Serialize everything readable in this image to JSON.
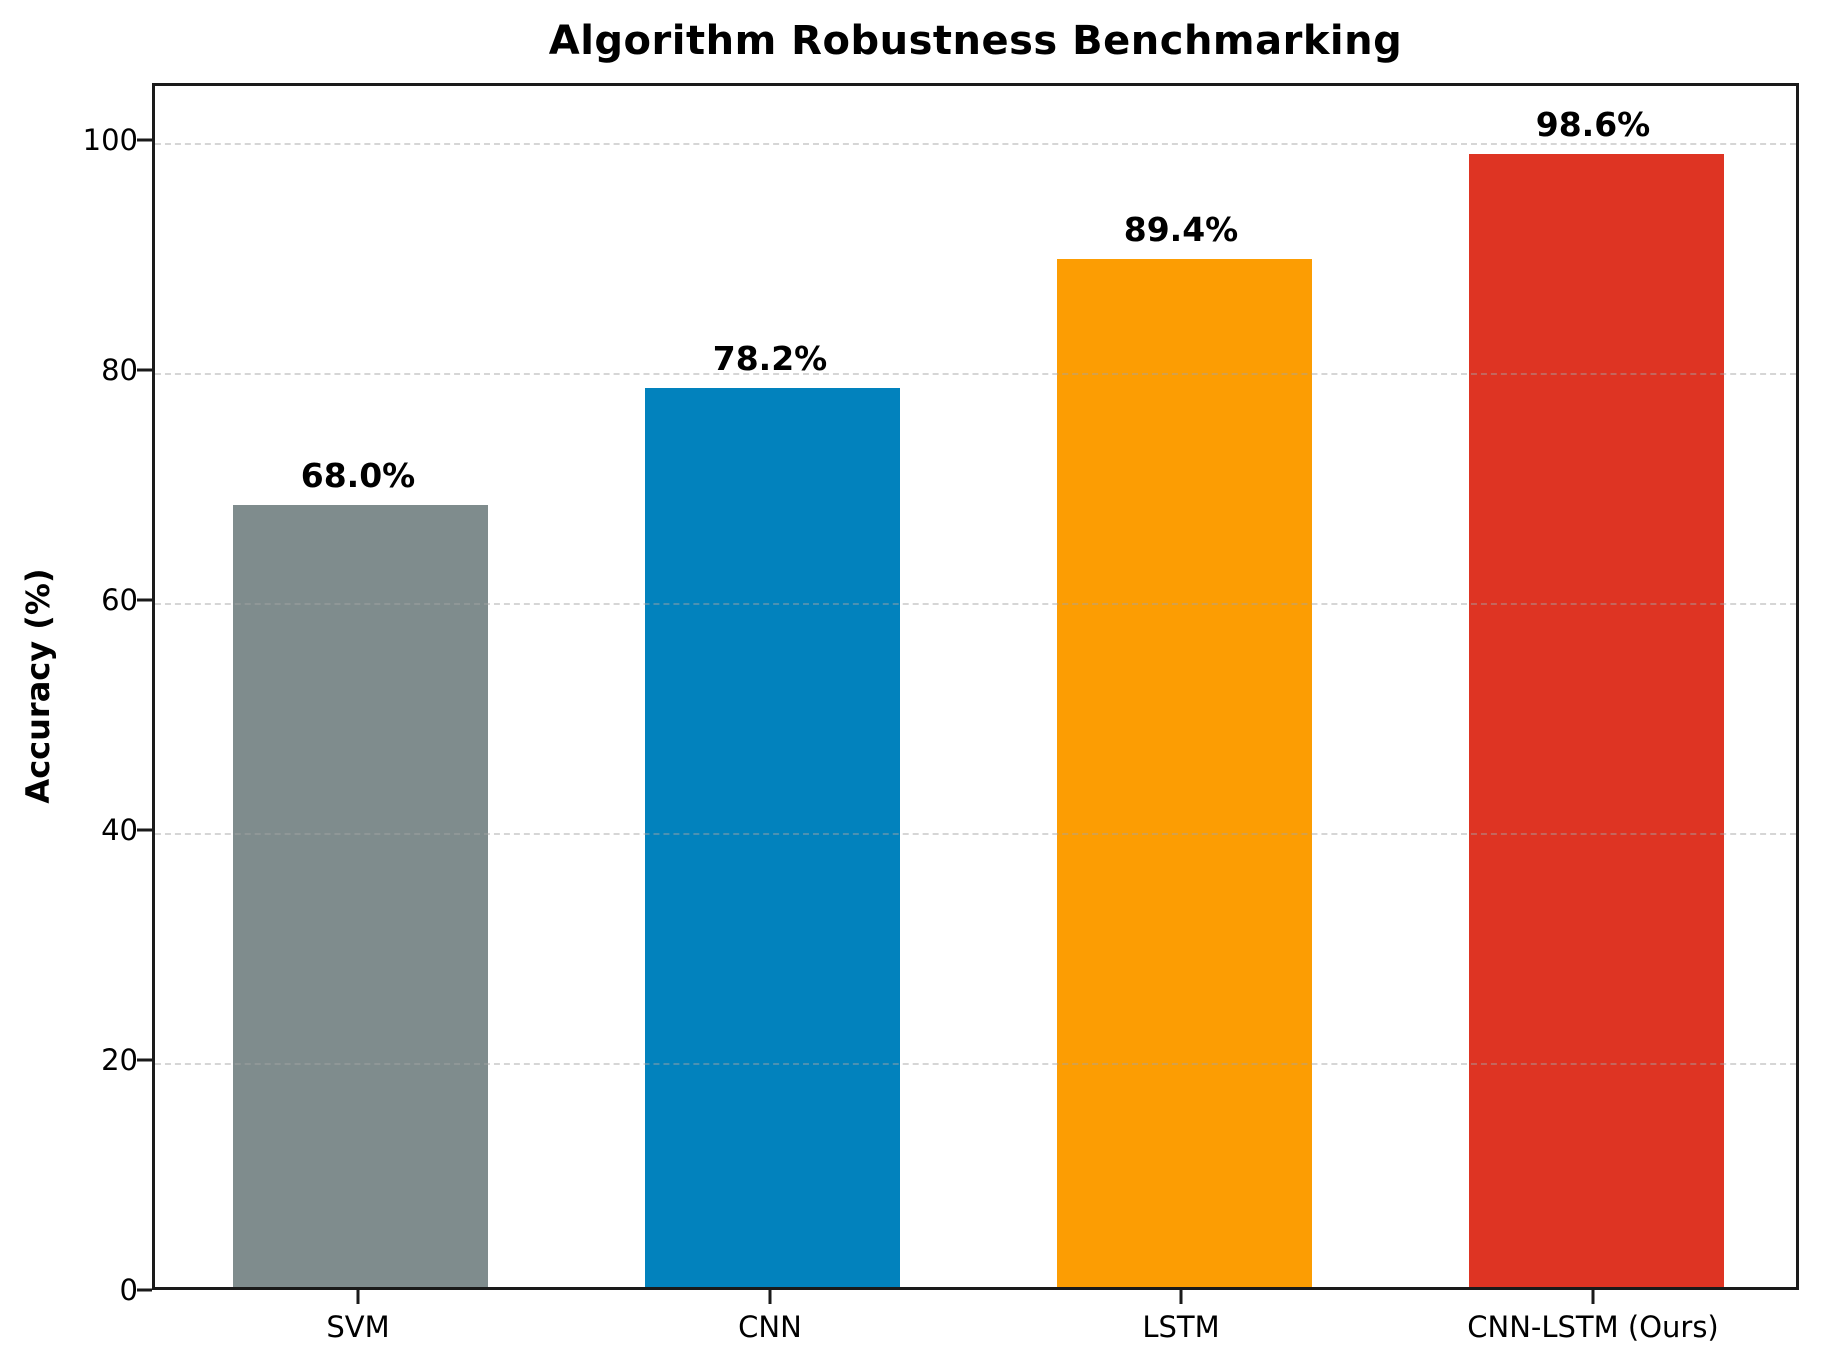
{
  "chart_data": {
    "type": "bar",
    "title": "Algorithm Robustness Benchmarking",
    "xlabel": "",
    "ylabel": "Accuracy (%)",
    "categories": [
      "SVM",
      "CNN",
      "LSTM",
      "CNN-LSTM (Ours)"
    ],
    "values": [
      68.0,
      78.2,
      89.4,
      98.6
    ],
    "value_labels": [
      "68.0%",
      "78.2%",
      "89.4%",
      "98.6%"
    ],
    "bar_colors": [
      "#7f8c8d",
      "#0282bd",
      "#fc9d03",
      "#de3423"
    ],
    "yticks": [
      0,
      20,
      40,
      60,
      80,
      100
    ],
    "ylim": [
      0,
      105
    ],
    "grid": "horizontal-dashed",
    "grid_values": [
      20,
      40,
      60,
      80,
      100
    ],
    "legend": "none",
    "background_color": "#ffffff",
    "spine_color": "#1a1a1a"
  }
}
